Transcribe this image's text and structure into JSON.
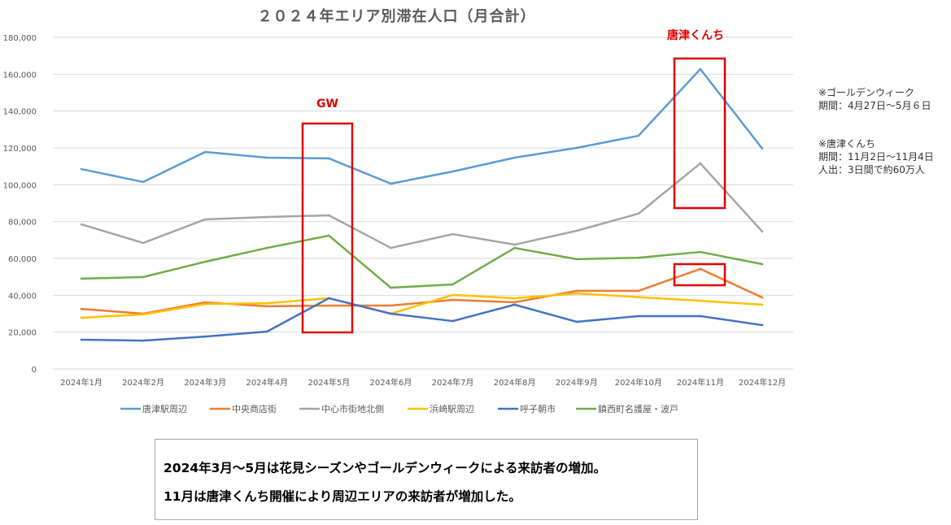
{
  "chart_data": {
    "type": "line",
    "title": "２０２４年エリア別滞在人口（月合計）",
    "xlabel": "",
    "ylabel": "",
    "ylim": [
      0,
      180000
    ],
    "yticks": [
      "0",
      "20,000",
      "40,000",
      "60,000",
      "80,000",
      "100,000",
      "120,000",
      "140,000",
      "160,000",
      "180,000"
    ],
    "categories": [
      "2024年1月",
      "2024年2月",
      "2024年3月",
      "2024年4月",
      "2024年5月",
      "2024年6月",
      "2024年7月",
      "2024年8月",
      "2024年9月",
      "2024年10月",
      "2024年11月",
      "2024年12月"
    ],
    "grid": true,
    "legend_position": "bottom",
    "series": [
      {
        "name": "唐津駅周辺",
        "color": "#5b9bd5",
        "values": [
          108500,
          101500,
          117800,
          114700,
          114300,
          100600,
          107200,
          114700,
          120000,
          126600,
          162800,
          119600
        ]
      },
      {
        "name": "中央商店街",
        "color": "#ed7d31",
        "values": [
          32600,
          30000,
          36200,
          34000,
          34400,
          34400,
          37500,
          36200,
          42400,
          42400,
          54300,
          38800
        ]
      },
      {
        "name": "中心市街地北側",
        "color": "#a5a5a5",
        "values": [
          78500,
          68400,
          81200,
          82500,
          83400,
          65700,
          73200,
          67500,
          75000,
          84300,
          111600,
          74600
        ]
      },
      {
        "name": "浜崎駅周辺",
        "color": "#ffc000",
        "values": [
          27800,
          29600,
          35300,
          35700,
          38400,
          30000,
          40200,
          38400,
          41000,
          39000,
          37000,
          34900
        ]
      },
      {
        "name": "呼子朝市",
        "color": "#4472c4",
        "values": [
          15900,
          15400,
          17600,
          20300,
          38400,
          30000,
          26000,
          34900,
          25600,
          28700,
          28700,
          23800
        ]
      },
      {
        "name": "鎮西町名護屋・波戸",
        "color": "#70ad47",
        "values": [
          49000,
          49900,
          58200,
          65700,
          72400,
          44100,
          45900,
          65700,
          59600,
          60400,
          63500,
          56900
        ]
      }
    ],
    "annotations": {
      "gw_label": "GW",
      "kunchi_label": "唐津くんち",
      "highlight_color": "#e00000"
    }
  },
  "notes": {
    "gw": "※ゴールデンウィーク\n期間：4月27日～5月６日",
    "kunchi": "※唐津くんち\n期間：11月2日～11月4日\n人出：3日間で約60万人"
  },
  "summary": {
    "line1": "2024年3月～5月は花見シーズンやゴールデンウィークによる来訪者の増加。",
    "line2": "11月は唐津くんち開催により周辺エリアの来訪者が増加した。"
  }
}
